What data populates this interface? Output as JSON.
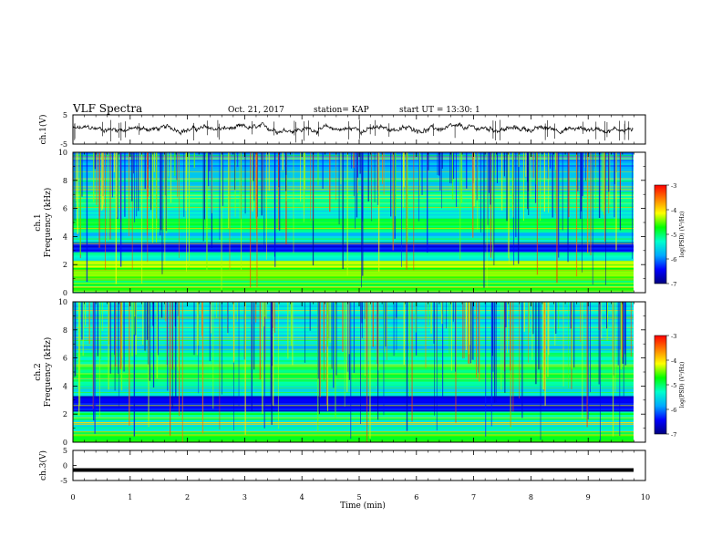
{
  "header": {
    "title": "VLF Spectra",
    "date": "Oct. 21, 2017",
    "station": "station= KAP",
    "start": "start UT = 13:30: 1"
  },
  "colorbar": {
    "label": "log(PSD) (V²/Hz)",
    "ticks": [
      "-3",
      "-4",
      "-5",
      "-6",
      "-7"
    ],
    "colors": [
      "#000080",
      "#0000ff",
      "#00aaff",
      "#00ffcc",
      "#00ff00",
      "#ffff00",
      "#ff8000",
      "#ff0000",
      "#ffffff"
    ]
  },
  "chart_data": [
    {
      "type": "line",
      "panel": "ch1-waveform",
      "ylabel": "ch.1(V)",
      "ylim": [
        -5,
        5
      ],
      "yticks": [
        "5",
        "-5"
      ],
      "xlim": [
        0,
        10
      ],
      "approx_level": 0.2,
      "approx_amplitude": 1.0
    },
    {
      "type": "heatmap",
      "panel": "ch1-spectrogram",
      "ylabel": "ch.1",
      "ylabel2": "Frequency (kHz)",
      "ylim": [
        0,
        10
      ],
      "yticks": [
        "0",
        "2",
        "4",
        "6",
        "8",
        "10"
      ],
      "xlim": [
        0,
        10
      ],
      "zlim": [
        -7,
        -3
      ],
      "bands": [
        {
          "from": 0.0,
          "to": 0.4,
          "level": 0.55
        },
        {
          "from": 0.4,
          "to": 1.0,
          "level": 0.5
        },
        {
          "from": 1.0,
          "to": 1.8,
          "level": 0.6
        },
        {
          "from": 1.8,
          "to": 2.3,
          "level": 0.68
        },
        {
          "from": 2.3,
          "to": 2.9,
          "level": 0.42
        },
        {
          "from": 2.9,
          "to": 3.6,
          "level": 0.15
        },
        {
          "from": 3.6,
          "to": 4.3,
          "level": 0.35
        },
        {
          "from": 4.3,
          "to": 5.3,
          "level": 0.5
        },
        {
          "from": 5.3,
          "to": 6.0,
          "level": 0.4
        },
        {
          "from": 6.0,
          "to": 7.2,
          "level": 0.45
        },
        {
          "from": 7.2,
          "to": 8.2,
          "level": 0.35
        },
        {
          "from": 8.2,
          "to": 10.0,
          "level": 0.3
        }
      ]
    },
    {
      "type": "heatmap",
      "panel": "ch2-spectrogram",
      "ylabel": "ch.2",
      "ylabel2": "Frequency (kHz)",
      "ylim": [
        0,
        10
      ],
      "yticks": [
        "0",
        "2",
        "4",
        "6",
        "8",
        "10"
      ],
      "xlim": [
        0,
        10
      ],
      "zlim": [
        -7,
        -3
      ],
      "bands": [
        {
          "from": 0.0,
          "to": 0.8,
          "level": 0.55
        },
        {
          "from": 0.8,
          "to": 1.6,
          "level": 0.42
        },
        {
          "from": 1.6,
          "to": 2.2,
          "level": 0.5
        },
        {
          "from": 2.2,
          "to": 3.3,
          "level": 0.12
        },
        {
          "from": 3.3,
          "to": 4.0,
          "level": 0.4
        },
        {
          "from": 4.0,
          "to": 5.5,
          "level": 0.5
        },
        {
          "from": 5.5,
          "to": 6.5,
          "level": 0.45
        },
        {
          "from": 6.5,
          "to": 7.5,
          "level": 0.35
        },
        {
          "from": 7.5,
          "to": 10.0,
          "level": 0.38
        }
      ]
    },
    {
      "type": "line",
      "panel": "ch3-waveform",
      "ylabel": "ch.3(V)",
      "ylim": [
        -5,
        5
      ],
      "yticks": [
        "5",
        "0",
        "-5"
      ],
      "xlim": [
        0,
        10
      ],
      "approx_level": -1.5,
      "approx_amplitude": 0.0
    }
  ],
  "xaxis": {
    "label": "Time (min)",
    "ticks": [
      "0",
      "1",
      "2",
      "3",
      "4",
      "5",
      "6",
      "7",
      "8",
      "9",
      "10"
    ]
  }
}
